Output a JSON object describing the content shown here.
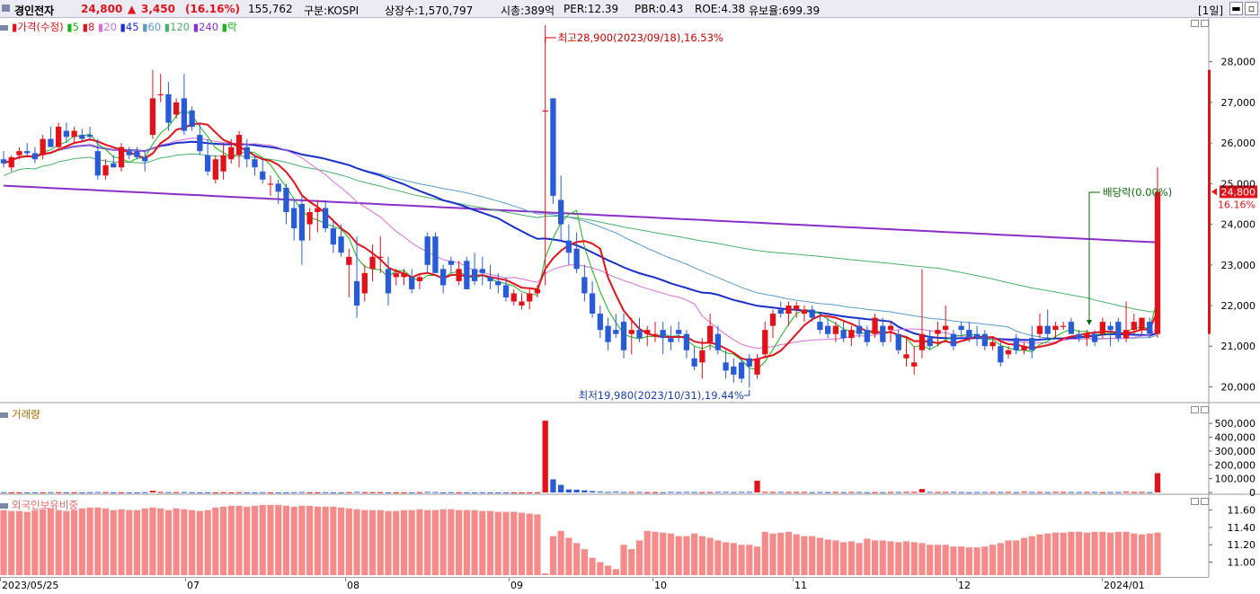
{
  "header": {
    "name": "경인전자",
    "price": "24,800",
    "change_symbol": "▲",
    "change": "3,450",
    "change_pct": "(16.16%)",
    "volume": "155,762",
    "market": "구분:KOSPI",
    "shares": "상장수:1,570,797",
    "mcap": "시총:389억",
    "per": "PER:12.39",
    "pbr": "PBR:0.43",
    "roe": "ROE:4.38",
    "reserve": "유보율:699.39",
    "period": "[1일]"
  },
  "colors": {
    "up": "#e3121a",
    "down": "#2a5bd7",
    "ma5": "#19b419",
    "ma8": "#e3121a",
    "ma20": "#d670d6",
    "ma45": "#1a2fc9",
    "ma60": "#5a9ac8",
    "ma120": "#4caf6a",
    "ma240": "#8a2fc8",
    "foreign": "#f58a8a"
  },
  "price_panel": {
    "legend_price": "가격(수정)",
    "legend_items": [
      {
        "label": "5",
        "color": "#19b419"
      },
      {
        "label": "8",
        "color": "#e3121a"
      },
      {
        "label": "20",
        "color": "#d670d6"
      },
      {
        "label": "45",
        "color": "#1a2fc9"
      },
      {
        "label": "60",
        "color": "#5a9ac8"
      },
      {
        "label": "120",
        "color": "#4caf6a"
      },
      {
        "label": "240",
        "color": "#8a2fc8"
      },
      {
        "label": "락",
        "color": "#19b419"
      }
    ],
    "high_annotation": "최고28,900(2023/09/18),16.53%",
    "low_annotation": "최저19,980(2023/10/31),19.44%",
    "dividend_annotation": "배당락(0.00%)",
    "current_price_tag": "24,800",
    "current_pct_tag": "16.16%",
    "y_ticks": [
      "28,000",
      "27,000",
      "26,000",
      "25,000",
      "24,000",
      "23,000",
      "22,000",
      "21,000",
      "20,000"
    ]
  },
  "volume_panel": {
    "title": "거래량",
    "y_ticks": [
      "500,000",
      "400,000",
      "300,000",
      "200,000",
      "100,000",
      "0"
    ]
  },
  "foreign_panel": {
    "title": "외국인보유비중",
    "y_ticks": [
      "11.60",
      "11.40",
      "11.20",
      "11.00"
    ]
  },
  "x_axis": {
    "labels": [
      "2023/05/25",
      "07",
      "08",
      "09",
      "10",
      "11",
      "12",
      "2024/01"
    ]
  },
  "chart_data": {
    "type": "candlestick",
    "price_axis": {
      "min": 19700,
      "max": 28900
    },
    "volume_axis": {
      "min": 0,
      "max": 560000
    },
    "foreign_axis": {
      "min": 10.85,
      "max": 11.7
    },
    "candles_ohlc": [
      [
        25600,
        25800,
        25400,
        25500
      ],
      [
        25400,
        25700,
        25300,
        25650
      ],
      [
        25700,
        25900,
        25600,
        25800
      ],
      [
        25800,
        26000,
        25700,
        25750
      ],
      [
        25750,
        25900,
        25500,
        25600
      ],
      [
        25700,
        26200,
        25600,
        26100
      ],
      [
        26100,
        26400,
        25900,
        25900
      ],
      [
        25900,
        26500,
        25800,
        26400
      ],
      [
        26300,
        26500,
        26000,
        26150
      ],
      [
        26150,
        26400,
        26000,
        26300
      ],
      [
        26200,
        26350,
        26050,
        26100
      ],
      [
        26200,
        26400,
        26050,
        26150
      ],
      [
        25800,
        26100,
        25100,
        25200
      ],
      [
        25200,
        25600,
        25100,
        25450
      ],
      [
        25500,
        25700,
        25400,
        25400
      ],
      [
        25400,
        26000,
        25300,
        25900
      ],
      [
        25800,
        25900,
        25600,
        25700
      ],
      [
        25800,
        25900,
        25600,
        25650
      ],
      [
        25650,
        25800,
        25300,
        25550
      ],
      [
        26200,
        27800,
        26100,
        27100
      ],
      [
        27200,
        27700,
        27000,
        27200
      ],
      [
        27200,
        27500,
        26300,
        26500
      ],
      [
        26700,
        27100,
        26600,
        27000
      ],
      [
        27100,
        27700,
        26200,
        26300
      ],
      [
        26800,
        26900,
        26300,
        26400
      ],
      [
        26200,
        26500,
        25700,
        25800
      ],
      [
        25700,
        26100,
        25200,
        25300
      ],
      [
        25100,
        25700,
        25000,
        25600
      ],
      [
        25300,
        26000,
        25100,
        25700
      ],
      [
        25600,
        26100,
        25500,
        25900
      ],
      [
        25700,
        26300,
        25400,
        26200
      ],
      [
        25900,
        26100,
        25400,
        25600
      ],
      [
        25600,
        25700,
        25200,
        25400
      ],
      [
        25300,
        25600,
        25000,
        25100
      ],
      [
        25000,
        25200,
        24700,
        25000
      ],
      [
        25000,
        25100,
        24500,
        24800
      ],
      [
        24900,
        25000,
        24000,
        24300
      ],
      [
        24400,
        24600,
        23600,
        23900
      ],
      [
        24500,
        24700,
        23000,
        23600
      ],
      [
        24000,
        24400,
        23600,
        24300
      ],
      [
        24300,
        24600,
        23800,
        24400
      ],
      [
        24400,
        24600,
        23800,
        23900
      ],
      [
        23900,
        24100,
        23300,
        23500
      ],
      [
        23700,
        24000,
        23200,
        23300
      ],
      [
        23000,
        23400,
        22200,
        23200
      ],
      [
        22600,
        23700,
        21700,
        22000
      ],
      [
        22300,
        23000,
        22100,
        22800
      ],
      [
        22900,
        23500,
        22600,
        23200
      ],
      [
        23200,
        23700,
        22800,
        23200
      ],
      [
        22900,
        23200,
        22000,
        22300
      ],
      [
        22700,
        22900,
        22500,
        22800
      ],
      [
        22700,
        22900,
        22500,
        22800
      ],
      [
        22700,
        22900,
        22300,
        22400
      ],
      [
        22600,
        22800,
        22400,
        22700
      ],
      [
        23700,
        23800,
        22800,
        23000
      ],
      [
        23700,
        23800,
        22800,
        22800
      ],
      [
        22900,
        23000,
        22300,
        22500
      ],
      [
        23100,
        23200,
        22800,
        23000
      ],
      [
        22600,
        23100,
        22500,
        22900
      ],
      [
        23100,
        23200,
        22400,
        22400
      ],
      [
        22900,
        23300,
        22500,
        22600
      ],
      [
        22900,
        23200,
        22500,
        22800
      ],
      [
        22700,
        23000,
        22400,
        22600
      ],
      [
        22600,
        22800,
        22300,
        22500
      ],
      [
        22500,
        22700,
        22100,
        22200
      ],
      [
        22100,
        22400,
        22000,
        22300
      ],
      [
        22000,
        22300,
        21900,
        22100
      ],
      [
        22100,
        22400,
        21900,
        22300
      ],
      [
        22300,
        22500,
        22200,
        22400
      ],
      [
        26800,
        28900,
        22500,
        26800
      ],
      [
        27100,
        27100,
        24500,
        24700
      ],
      [
        24600,
        25200,
        23600,
        24000
      ],
      [
        23600,
        24000,
        23000,
        23300
      ],
      [
        23400,
        23800,
        22800,
        22900
      ],
      [
        22700,
        23000,
        22100,
        22300
      ],
      [
        22300,
        22600,
        21700,
        21800
      ],
      [
        21800,
        22000,
        21200,
        21400
      ],
      [
        21500,
        21700,
        20900,
        21100
      ],
      [
        21400,
        21800,
        21200,
        21300
      ],
      [
        21600,
        21800,
        20700,
        20900
      ],
      [
        21300,
        21700,
        20800,
        21400
      ],
      [
        21400,
        21700,
        21100,
        21200
      ],
      [
        21300,
        21500,
        21000,
        21400
      ],
      [
        21300,
        21600,
        21100,
        21300
      ],
      [
        21400,
        21600,
        20800,
        21200
      ],
      [
        21200,
        21500,
        20900,
        21100
      ],
      [
        21400,
        21600,
        21100,
        21300
      ],
      [
        21300,
        21400,
        20700,
        20900
      ],
      [
        20700,
        21000,
        20400,
        20500
      ],
      [
        20600,
        21200,
        20200,
        20900
      ],
      [
        21100,
        21800,
        20900,
        21500
      ],
      [
        21300,
        21500,
        20800,
        20900
      ],
      [
        20600,
        20900,
        20200,
        20400
      ],
      [
        20500,
        20700,
        20100,
        20300
      ],
      [
        20600,
        20700,
        20100,
        20200
      ],
      [
        20700,
        20800,
        19980,
        20500
      ],
      [
        20300,
        20800,
        20200,
        20700
      ],
      [
        20800,
        21600,
        20700,
        21400
      ],
      [
        21500,
        21900,
        21200,
        21800
      ],
      [
        21900,
        22100,
        21700,
        21800
      ],
      [
        21800,
        22100,
        21500,
        22000
      ],
      [
        21900,
        22100,
        21700,
        22000
      ],
      [
        21800,
        22000,
        21600,
        21900
      ],
      [
        21900,
        22000,
        21600,
        21700
      ],
      [
        21600,
        21800,
        21300,
        21400
      ],
      [
        21500,
        21700,
        21200,
        21300
      ],
      [
        21300,
        21600,
        21100,
        21500
      ],
      [
        21400,
        21600,
        21100,
        21200
      ],
      [
        21200,
        21500,
        21000,
        21400
      ],
      [
        21500,
        21700,
        21200,
        21300
      ],
      [
        21400,
        21500,
        21000,
        21100
      ],
      [
        21300,
        21800,
        21200,
        21700
      ],
      [
        21500,
        21700,
        21000,
        21100
      ],
      [
        21400,
        21600,
        21100,
        21500
      ],
      [
        21300,
        21400,
        20800,
        20900
      ],
      [
        20700,
        21200,
        20500,
        20800
      ],
      [
        20500,
        21000,
        20300,
        20600
      ],
      [
        20900,
        22900,
        20700,
        21300
      ],
      [
        21200,
        21400,
        20900,
        21000
      ],
      [
        21300,
        21600,
        21000,
        21400
      ],
      [
        21400,
        22000,
        21200,
        21500
      ],
      [
        21300,
        21400,
        20900,
        21000
      ],
      [
        21500,
        21600,
        21200,
        21400
      ],
      [
        21400,
        21600,
        21100,
        21200
      ],
      [
        21300,
        21500,
        21000,
        21200
      ],
      [
        21300,
        21400,
        20900,
        21000
      ],
      [
        21000,
        21200,
        20900,
        21100
      ],
      [
        21000,
        21100,
        20500,
        20600
      ],
      [
        20800,
        21000,
        20700,
        20900
      ],
      [
        21200,
        21300,
        20800,
        20900
      ],
      [
        20900,
        21100,
        20800,
        21000
      ],
      [
        21200,
        21500,
        20700,
        20900
      ],
      [
        21300,
        21800,
        21200,
        21500
      ],
      [
        21500,
        21900,
        21200,
        21300
      ],
      [
        21400,
        21600,
        21200,
        21500
      ],
      [
        21500,
        21600,
        21400,
        21500
      ],
      [
        21600,
        21700,
        21300,
        21300
      ],
      [
        21300,
        21400,
        21100,
        21200
      ],
      [
        21200,
        21400,
        21000,
        21300
      ],
      [
        21300,
        21400,
        21000,
        21100
      ],
      [
        21300,
        21700,
        21200,
        21600
      ],
      [
        21500,
        21600,
        21000,
        21400
      ],
      [
        21600,
        21700,
        21100,
        21200
      ],
      [
        21200,
        22100,
        21100,
        21400
      ],
      [
        21400,
        21800,
        21300,
        21600
      ],
      [
        21400,
        21600,
        21300,
        21700
      ],
      [
        21600,
        21700,
        21200,
        21300
      ],
      [
        21300,
        25400,
        21200,
        24800
      ]
    ],
    "volume": [
      2,
      1,
      1,
      1,
      1,
      1,
      2,
      2,
      1,
      1,
      1,
      2,
      3,
      2,
      1,
      1,
      1,
      1,
      2,
      12,
      3,
      2,
      2,
      3,
      2,
      1,
      1,
      1,
      2,
      1,
      2,
      1,
      1,
      2,
      1,
      1,
      1,
      2,
      3,
      1,
      1,
      2,
      1,
      1,
      2,
      4,
      2,
      2,
      2,
      1,
      1,
      1,
      1,
      2,
      4,
      3,
      1,
      2,
      1,
      1,
      1,
      2,
      1,
      1,
      1,
      1,
      1,
      1,
      1,
      520,
      95,
      55,
      22,
      20,
      15,
      10,
      6,
      4,
      6,
      3,
      3,
      3,
      2,
      2,
      2,
      4,
      3,
      4,
      3,
      2,
      3,
      4,
      4,
      3,
      4,
      4,
      85,
      4,
      3,
      4,
      3,
      3,
      3,
      2,
      3,
      2,
      3,
      2,
      3,
      3,
      2,
      2,
      2,
      3,
      3,
      4,
      4,
      25,
      4,
      3,
      3,
      4,
      3,
      2,
      3,
      3,
      3,
      3,
      4,
      2,
      5,
      3,
      3,
      2,
      4,
      3,
      3,
      3,
      3,
      3,
      2,
      3,
      3,
      5,
      3,
      3,
      2,
      140
    ],
    "foreign_ratio": [
      11.6,
      11.59,
      11.59,
      11.58,
      11.6,
      11.61,
      11.62,
      11.6,
      11.59,
      11.6,
      11.62,
      11.63,
      11.63,
      11.62,
      11.6,
      11.61,
      11.6,
      11.6,
      11.62,
      11.63,
      11.62,
      11.6,
      11.62,
      11.61,
      11.6,
      11.59,
      11.6,
      11.63,
      11.64,
      11.65,
      11.65,
      11.64,
      11.65,
      11.66,
      11.66,
      11.66,
      11.65,
      11.64,
      11.65,
      11.65,
      11.64,
      11.64,
      11.64,
      11.63,
      11.62,
      11.61,
      11.6,
      11.6,
      11.6,
      11.59,
      11.59,
      11.6,
      11.6,
      11.61,
      11.6,
      11.6,
      11.61,
      11.61,
      11.6,
      11.6,
      11.6,
      11.59,
      11.59,
      11.58,
      11.58,
      11.58,
      11.57,
      11.56,
      11.55,
      10.87,
      11.3,
      11.36,
      11.28,
      11.22,
      11.15,
      11.05,
      11.0,
      10.96,
      10.92,
      11.2,
      11.15,
      11.25,
      11.36,
      11.35,
      11.34,
      11.33,
      11.3,
      11.3,
      11.33,
      11.3,
      11.28,
      11.25,
      11.23,
      11.22,
      11.2,
      11.2,
      11.18,
      11.35,
      11.33,
      11.34,
      11.35,
      11.32,
      11.3,
      11.3,
      11.28,
      11.26,
      11.25,
      11.23,
      11.24,
      11.22,
      11.27,
      11.25,
      11.25,
      11.24,
      11.23,
      11.24,
      11.23,
      11.22,
      11.2,
      11.2,
      11.2,
      11.18,
      11.18,
      11.17,
      11.17,
      11.18,
      11.2,
      11.22,
      11.25,
      11.25,
      11.28,
      11.3,
      11.32,
      11.33,
      11.34,
      11.34,
      11.35,
      11.35,
      11.34,
      11.35,
      11.35,
      11.34,
      11.35,
      11.35,
      11.33,
      11.32,
      11.33,
      11.34
    ]
  }
}
